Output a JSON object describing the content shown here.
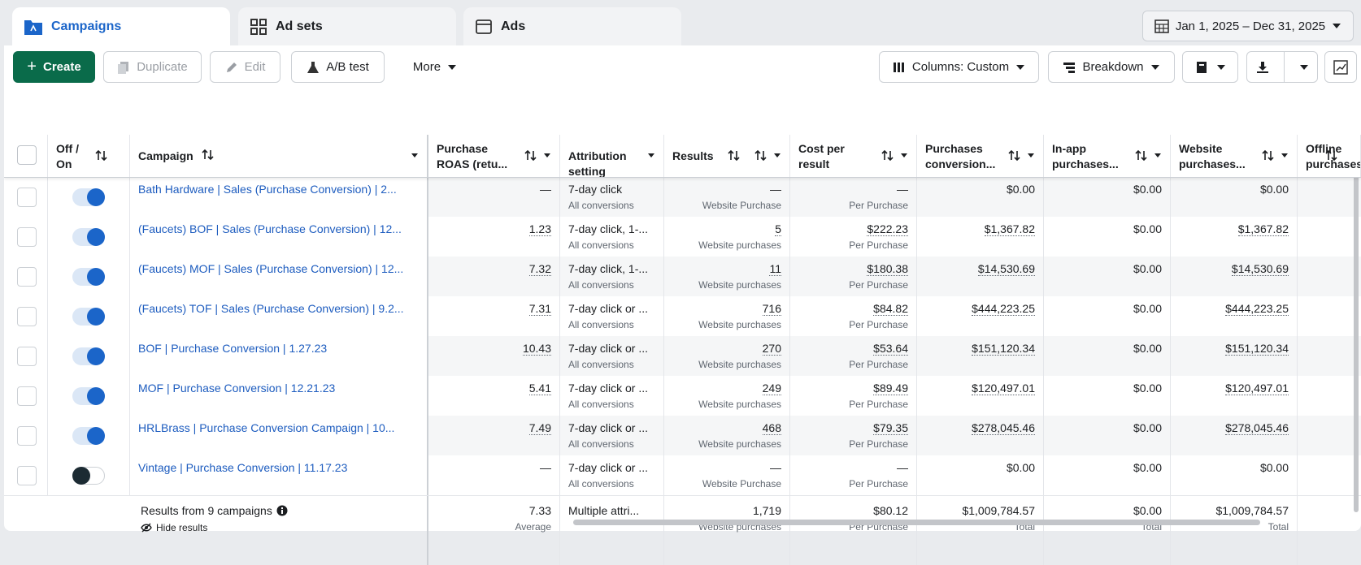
{
  "tabs": [
    "Campaigns",
    "Ad sets",
    "Ads"
  ],
  "date_range": "Jan 1, 2025 – Dec 31, 2025",
  "toolbar": {
    "create": "Create",
    "duplicate": "Duplicate",
    "edit": "Edit",
    "ab_test": "A/B test",
    "more": "More",
    "columns": "Columns: Custom",
    "breakdown": "Breakdown"
  },
  "table": {
    "headers": [
      "Off / On",
      "Campaign",
      "Purchase ROAS (retu...",
      "Attribution setting",
      "Results",
      "Cost per result",
      "Purchases conversion...",
      "In-app purchases...",
      "Website purchases...",
      "Offline purchases"
    ],
    "rows": [
      {
        "on": true,
        "name": "Bath Hardware | Sales (Purchase Conversion) | 2...",
        "roas": "—",
        "attribution": "7-day click",
        "attribution_note": "All conversions",
        "results": "—",
        "results_note": "Website Purchase",
        "cost": "—",
        "cost_note": "Per Purchase",
        "purchases_value": "$0.00",
        "in_app": "$0.00",
        "website": "$0.00"
      },
      {
        "on": true,
        "name": "(Faucets) BOF | Sales (Purchase Conversion) | 12...",
        "roas": "1.23",
        "attribution": "7-day click, 1-...",
        "attribution_note": "All conversions",
        "results": "5",
        "results_note": "Website purchases",
        "cost": "$222.23",
        "cost_note": "Per Purchase",
        "purchases_value": "$1,367.82",
        "in_app": "$0.00",
        "website": "$1,367.82"
      },
      {
        "on": true,
        "name": "(Faucets) MOF | Sales (Purchase Conversion) | 12...",
        "roas": "7.32",
        "attribution": "7-day click, 1-...",
        "attribution_note": "All conversions",
        "results": "11",
        "results_note": "Website purchases",
        "cost": "$180.38",
        "cost_note": "Per Purchase",
        "purchases_value": "$14,530.69",
        "in_app": "$0.00",
        "website": "$14,530.69"
      },
      {
        "on": true,
        "name": "(Faucets) TOF | Sales (Purchase Conversion) | 9.2...",
        "roas": "7.31",
        "attribution": "7-day click or ...",
        "attribution_note": "All conversions",
        "results": "716",
        "results_note": "Website purchases",
        "cost": "$84.82",
        "cost_note": "Per Purchase",
        "purchases_value": "$444,223.25",
        "in_app": "$0.00",
        "website": "$444,223.25"
      },
      {
        "on": true,
        "name": "BOF | Purchase Conversion | 1.27.23",
        "roas": "10.43",
        "attribution": "7-day click or ...",
        "attribution_note": "All conversions",
        "results": "270",
        "results_note": "Website purchases",
        "cost": "$53.64",
        "cost_note": "Per Purchase",
        "purchases_value": "$151,120.34",
        "in_app": "$0.00",
        "website": "$151,120.34"
      },
      {
        "on": true,
        "name": "MOF | Purchase Conversion | 12.21.23",
        "roas": "5.41",
        "attribution": "7-day click or ...",
        "attribution_note": "All conversions",
        "results": "249",
        "results_note": "Website purchases",
        "cost": "$89.49",
        "cost_note": "Per Purchase",
        "purchases_value": "$120,497.01",
        "in_app": "$0.00",
        "website": "$120,497.01"
      },
      {
        "on": true,
        "name": "HRLBrass | Purchase Conversion Campaign | 10...",
        "roas": "7.49",
        "attribution": "7-day click or ...",
        "attribution_note": "All conversions",
        "results": "468",
        "results_note": "Website purchases",
        "cost": "$79.35",
        "cost_note": "Per Purchase",
        "purchases_value": "$278,045.46",
        "in_app": "$0.00",
        "website": "$278,045.46"
      },
      {
        "on": false,
        "name": "Vintage | Purchase Conversion | 11.17.23",
        "roas": "—",
        "attribution": "7-day click or ...",
        "attribution_note": "All conversions",
        "results": "—",
        "results_note": "Website Purchase",
        "cost": "—",
        "cost_note": "Per Purchase",
        "purchases_value": "$0.00",
        "in_app": "$0.00",
        "website": "$0.00"
      }
    ],
    "summary": {
      "label": "Results from 9 campaigns",
      "hide": "Hide results",
      "roas": "7.33",
      "roas_note": "Average",
      "attribution": "Multiple attri...",
      "results": "1,719",
      "results_note": "Website purchases",
      "cost": "$80.12",
      "cost_note": "Per Purchase",
      "purchases_value": "$1,009,784.57",
      "purchases_note": "Total",
      "in_app": "$0.00",
      "in_app_note": "Total",
      "website": "$1,009,784.57",
      "website_note": "Total"
    }
  }
}
